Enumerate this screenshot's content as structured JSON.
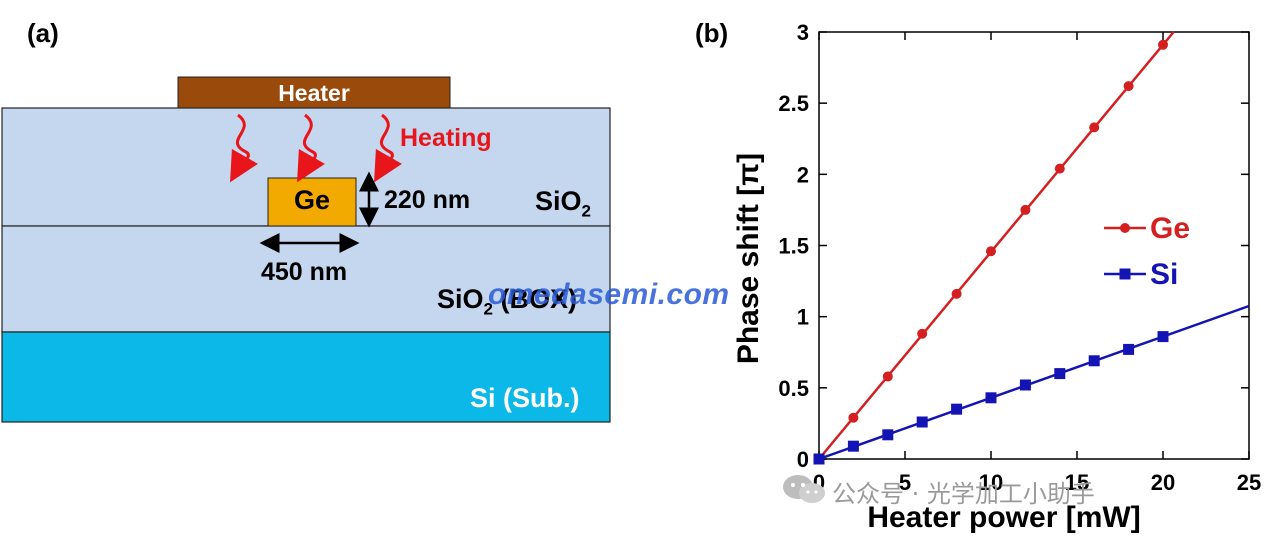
{
  "panel_a": {
    "label": "(a)",
    "heater_label": "Heater",
    "heating_label": "Heating",
    "core_label": "Ge",
    "height_label": "220 nm",
    "width_label": "450 nm",
    "cladding_label": "SiO",
    "cladding_sub": "2",
    "box_label_pre": "SiO",
    "box_sub": "2",
    "box_label_post": " (BOX)",
    "substrate_label": "Si (Sub.)",
    "colors": {
      "heater": "#9a4a0a",
      "cladding": "#c5d7ef",
      "core": "#f2a900",
      "substrate": "#0cb8e8",
      "heating_arrow": "#e8151b"
    }
  },
  "panel_b": {
    "label": "(b)"
  },
  "watermark": "omedasemi.com",
  "wechat_text": "公众号 · 光学加工小助手",
  "chart_data": {
    "type": "line",
    "xlabel": "Heater power [mW]",
    "ylabel": "Phase shift [π]",
    "xlim": [
      0,
      25
    ],
    "ylim": [
      0,
      3
    ],
    "xticks": [
      0,
      5,
      10,
      15,
      20,
      25
    ],
    "yticks": [
      0,
      0.5,
      1,
      1.5,
      2,
      2.5,
      3
    ],
    "ytick_labels": [
      "0",
      "0.5",
      "1",
      "1.5",
      "2",
      "2.5",
      "3"
    ],
    "grid": false,
    "legend_position": "right-middle",
    "series": [
      {
        "name": "Ge",
        "color": "#d42020",
        "marker": "circle",
        "x": [
          0,
          2,
          4,
          6,
          8,
          10,
          12,
          14,
          16,
          18,
          20
        ],
        "y": [
          0,
          0.29,
          0.58,
          0.88,
          1.16,
          1.46,
          1.75,
          2.04,
          2.33,
          2.62,
          2.91
        ],
        "fit_slope": 0.1455
      },
      {
        "name": "Si",
        "color": "#1414b4",
        "marker": "square",
        "x": [
          0,
          2,
          4,
          6,
          8,
          10,
          12,
          14,
          16,
          18,
          20
        ],
        "y": [
          0,
          0.09,
          0.17,
          0.26,
          0.35,
          0.43,
          0.52,
          0.6,
          0.69,
          0.77,
          0.86
        ],
        "fit_slope": 0.043
      }
    ]
  }
}
